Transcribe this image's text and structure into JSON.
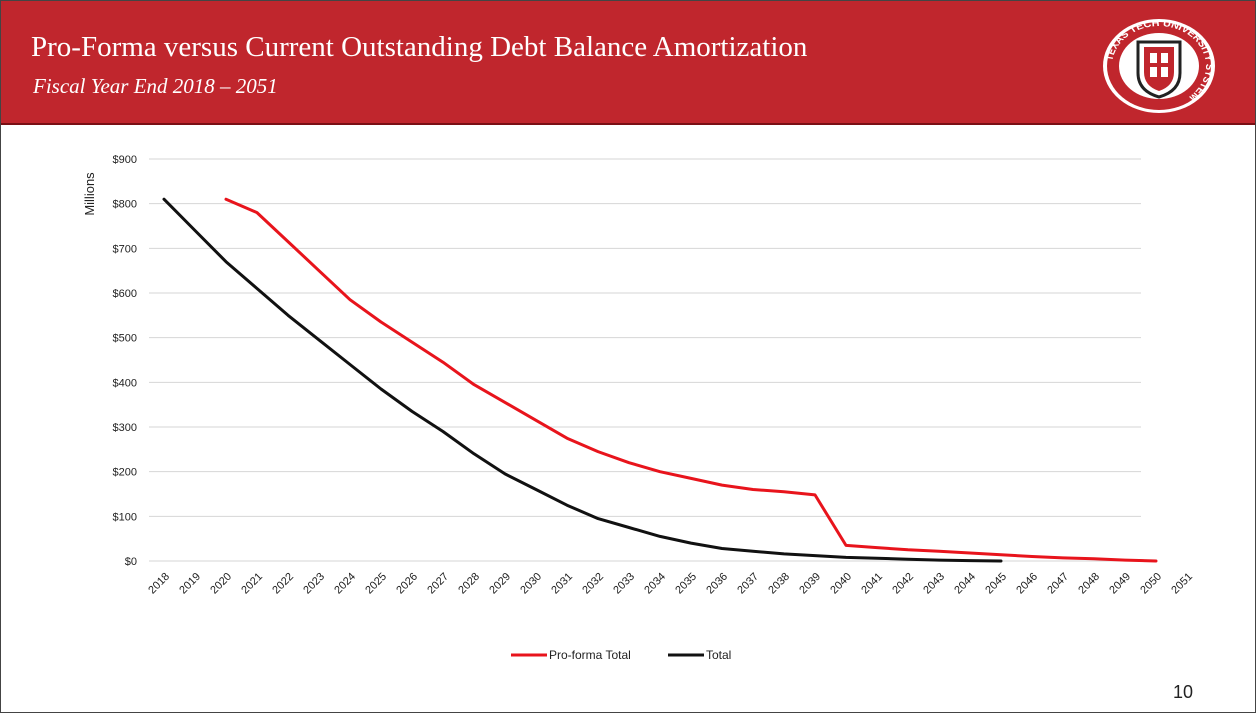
{
  "slide": {
    "title": "Pro-Forma versus Current Outstanding Debt Balance Amortization",
    "subtitle": "Fiscal Year End 2018 – 2051",
    "page_number": "10",
    "seal_text": "TEXAS TECH UNIVERSITY SYSTEM",
    "accent_color": "#c0262d"
  },
  "chart_data": {
    "type": "line",
    "title": "",
    "ylabel": "Millions",
    "xlabel": "",
    "ylim": [
      0,
      900
    ],
    "yticks": [
      0,
      100,
      200,
      300,
      400,
      500,
      600,
      700,
      800,
      900
    ],
    "ytick_labels": [
      "$0",
      "$100",
      "$200",
      "$300",
      "$400",
      "$500",
      "$600",
      "$700",
      "$800",
      "$900"
    ],
    "categories": [
      "2018",
      "2019",
      "2020",
      "2021",
      "2022",
      "2023",
      "2024",
      "2025",
      "2026",
      "2027",
      "2028",
      "2029",
      "2030",
      "2031",
      "2032",
      "2033",
      "2034",
      "2035",
      "2036",
      "2037",
      "2038",
      "2039",
      "2040",
      "2041",
      "2042",
      "2043",
      "2044",
      "2045",
      "2046",
      "2047",
      "2048",
      "2049",
      "2050",
      "2051"
    ],
    "grid": true,
    "legend_position": "bottom",
    "series": [
      {
        "name": "Pro-forma Total",
        "color": "#e8141c",
        "values": [
          null,
          null,
          810,
          780,
          715,
          650,
          585,
          535,
          490,
          445,
          395,
          355,
          315,
          275,
          245,
          220,
          200,
          185,
          170,
          160,
          155,
          148,
          35,
          30,
          25,
          22,
          18,
          14,
          10,
          7,
          5,
          2,
          0,
          null
        ]
      },
      {
        "name": "Total",
        "color": "#111111",
        "values": [
          810,
          740,
          670,
          610,
          550,
          495,
          440,
          385,
          335,
          290,
          240,
          195,
          160,
          125,
          95,
          75,
          55,
          40,
          28,
          22,
          16,
          12,
          8,
          6,
          4,
          2,
          1,
          0,
          null,
          null,
          null,
          null,
          null,
          null
        ]
      }
    ]
  }
}
